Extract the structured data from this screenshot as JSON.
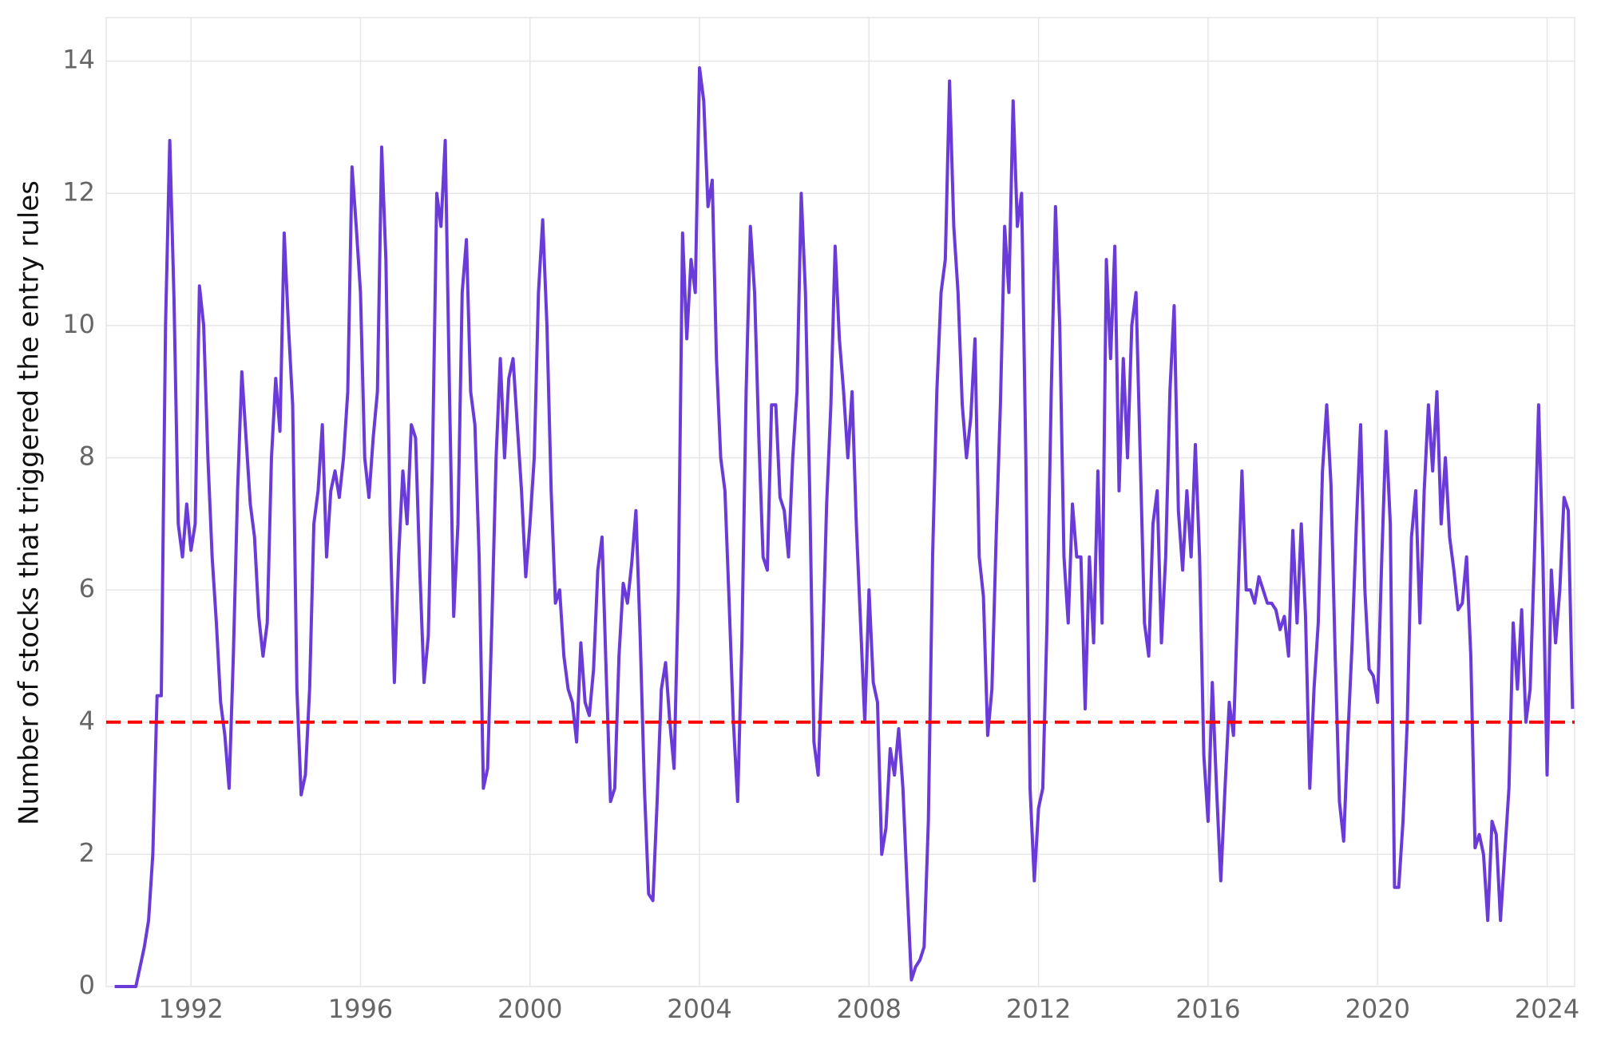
{
  "chart_data": {
    "type": "line",
    "y_label": "Number of stocks that triggered the entry rules",
    "x": [
      1990.2,
      1990.3,
      1990.4,
      1990.5,
      1990.6,
      1990.7,
      1990.8,
      1990.9,
      1991,
      1991.1,
      1991.2,
      1991.3,
      1991.4,
      1991.5,
      1991.6,
      1991.7,
      1991.8,
      1991.9,
      1992,
      1992.1,
      1992.2,
      1992.3,
      1992.4,
      1992.5,
      1992.6,
      1992.7,
      1992.8,
      1992.9,
      1993,
      1993.1,
      1993.2,
      1993.3,
      1993.4,
      1993.5,
      1993.6,
      1993.7,
      1993.8,
      1993.9,
      1994,
      1994.1,
      1994.2,
      1994.3,
      1994.4,
      1994.5,
      1994.6,
      1994.7,
      1994.8,
      1994.9,
      1995,
      1995.1,
      1995.2,
      1995.3,
      1995.4,
      1995.5,
      1995.6,
      1995.7,
      1995.8,
      1995.9,
      1996,
      1996.1,
      1996.2,
      1996.3,
      1996.4,
      1996.5,
      1996.6,
      1996.7,
      1996.8,
      1996.9,
      1997,
      1997.1,
      1997.2,
      1997.3,
      1997.4,
      1997.5,
      1997.6,
      1997.7,
      1997.8,
      1997.9,
      1998,
      1998.1,
      1998.2,
      1998.3,
      1998.4,
      1998.5,
      1998.6,
      1998.7,
      1998.8,
      1998.9,
      1999,
      1999.1,
      1999.2,
      1999.3,
      1999.4,
      1999.5,
      1999.6,
      1999.7,
      1999.8,
      1999.9,
      2000,
      2000.1,
      2000.2,
      2000.3,
      2000.4,
      2000.5,
      2000.6,
      2000.7,
      2000.8,
      2000.9,
      2001,
      2001.1,
      2001.2,
      2001.3,
      2001.4,
      2001.5,
      2001.6,
      2001.7,
      2001.8,
      2001.9,
      2002,
      2002.1,
      2002.2,
      2002.3,
      2002.4,
      2002.5,
      2002.6,
      2002.7,
      2002.8,
      2002.9,
      2003,
      2003.1,
      2003.2,
      2003.3,
      2003.4,
      2003.5,
      2003.6,
      2003.7,
      2003.8,
      2003.9,
      2004,
      2004.1,
      2004.2,
      2004.3,
      2004.4,
      2004.5,
      2004.6,
      2004.7,
      2004.8,
      2004.9,
      2005,
      2005.1,
      2005.2,
      2005.3,
      2005.4,
      2005.5,
      2005.6,
      2005.7,
      2005.8,
      2005.9,
      2006,
      2006.1,
      2006.2,
      2006.3,
      2006.4,
      2006.5,
      2006.6,
      2006.7,
      2006.8,
      2006.9,
      2007,
      2007.1,
      2007.2,
      2007.3,
      2007.4,
      2007.5,
      2007.6,
      2007.7,
      2007.8,
      2007.9,
      2008,
      2008.1,
      2008.2,
      2008.3,
      2008.4,
      2008.5,
      2008.6,
      2008.7,
      2008.8,
      2008.9,
      2009,
      2009.1,
      2009.2,
      2009.3,
      2009.4,
      2009.5,
      2009.6,
      2009.7,
      2009.8,
      2009.9,
      2010,
      2010.1,
      2010.2,
      2010.3,
      2010.4,
      2010.5,
      2010.6,
      2010.7,
      2010.8,
      2010.9,
      2011,
      2011.1,
      2011.2,
      2011.3,
      2011.4,
      2011.5,
      2011.6,
      2011.7,
      2011.8,
      2011.9,
      2012,
      2012.1,
      2012.2,
      2012.3,
      2012.4,
      2012.5,
      2012.6,
      2012.7,
      2012.8,
      2012.9,
      2013,
      2013.1,
      2013.2,
      2013.3,
      2013.4,
      2013.5,
      2013.6,
      2013.7,
      2013.8,
      2013.9,
      2014,
      2014.1,
      2014.2,
      2014.3,
      2014.4,
      2014.5,
      2014.6,
      2014.7,
      2014.8,
      2014.9,
      2015,
      2015.1,
      2015.2,
      2015.3,
      2015.4,
      2015.5,
      2015.6,
      2015.7,
      2015.8,
      2015.9,
      2016,
      2016.1,
      2016.2,
      2016.3,
      2016.4,
      2016.5,
      2016.6,
      2016.7,
      2016.8,
      2016.9,
      2017,
      2017.1,
      2017.2,
      2017.3,
      2017.4,
      2017.5,
      2017.6,
      2017.7,
      2017.8,
      2017.9,
      2018,
      2018.1,
      2018.2,
      2018.3,
      2018.4,
      2018.5,
      2018.6,
      2018.7,
      2018.8,
      2018.9,
      2019,
      2019.1,
      2019.2,
      2019.3,
      2019.4,
      2019.5,
      2019.6,
      2019.7,
      2019.8,
      2019.9,
      2020,
      2020.1,
      2020.2,
      2020.3,
      2020.4,
      2020.5,
      2020.6,
      2020.7,
      2020.8,
      2020.9,
      2021,
      2021.1,
      2021.2,
      2021.3,
      2021.4,
      2021.5,
      2021.6,
      2021.7,
      2021.8,
      2021.9,
      2022,
      2022.1,
      2022.2,
      2022.3,
      2022.4,
      2022.5,
      2022.6,
      2022.7,
      2022.8,
      2022.9,
      2023,
      2023.1,
      2023.2,
      2023.3,
      2023.4,
      2023.5,
      2023.6,
      2023.7,
      2023.8,
      2023.9,
      2024,
      2024.1,
      2024.2,
      2024.3,
      2024.4,
      2024.5,
      2024.6
    ],
    "values": [
      0,
      0,
      0,
      0,
      0,
      0,
      0.3,
      0.6,
      1,
      2,
      4.4,
      4.4,
      10,
      12.8,
      10.4,
      7,
      6.5,
      7.3,
      6.6,
      7,
      10.6,
      10,
      8,
      6.5,
      5.5,
      4.3,
      3.8,
      3,
      5,
      7.5,
      9.3,
      8.3,
      7.3,
      6.8,
      5.6,
      5,
      5.5,
      8,
      9.2,
      8.4,
      11.4,
      10,
      8.8,
      4.5,
      2.9,
      3.2,
      4.5,
      7,
      7.5,
      8.5,
      6.5,
      7.5,
      7.8,
      7.4,
      8,
      9,
      12.4,
      11.5,
      10.5,
      8,
      7.4,
      8.3,
      9,
      12.7,
      11,
      7,
      4.6,
      6.5,
      7.8,
      7,
      8.5,
      8.3,
      6.3,
      4.6,
      5.3,
      8,
      12,
      11.5,
      12.8,
      9,
      5.6,
      7,
      10.5,
      11.3,
      9,
      8.5,
      6.5,
      3,
      3.3,
      5.5,
      8,
      9.5,
      8,
      9.2,
      9.5,
      8.5,
      7.5,
      6.2,
      7,
      8,
      10.5,
      11.6,
      10,
      7.5,
      5.8,
      6,
      5,
      4.5,
      4.3,
      3.7,
      5.2,
      4.3,
      4.1,
      4.8,
      6.3,
      6.8,
      4.7,
      2.8,
      3,
      5,
      6.1,
      5.8,
      6.4,
      7.2,
      5.3,
      3,
      1.4,
      1.3,
      2.8,
      4.5,
      4.9,
      4,
      3.3,
      6,
      11.4,
      9.8,
      11,
      10.5,
      13.9,
      13.4,
      11.8,
      12.2,
      9.5,
      8,
      7.5,
      5.8,
      4,
      2.8,
      5.2,
      9,
      11.5,
      10.5,
      8.3,
      6.5,
      6.3,
      8.8,
      8.8,
      7.4,
      7.2,
      6.5,
      8,
      9,
      12,
      10.5,
      7.5,
      3.7,
      3.2,
      5,
      7.3,
      8.8,
      11.2,
      9.8,
      9,
      8,
      9,
      7,
      5.5,
      4,
      6,
      4.6,
      4.3,
      2,
      2.4,
      3.6,
      3.2,
      3.9,
      3,
      1.5,
      0.1,
      0.3,
      0.4,
      0.6,
      2.5,
      6.5,
      9,
      10.5,
      11,
      13.7,
      11.5,
      10.5,
      8.8,
      8,
      8.6,
      9.8,
      6.5,
      5.9,
      3.8,
      4.5,
      6.8,
      8.8,
      11.5,
      10.5,
      13.4,
      11.5,
      12,
      8,
      3,
      1.6,
      2.7,
      3,
      5.5,
      9,
      11.8,
      10,
      6.5,
      5.5,
      7.3,
      6.5,
      6.5,
      4.2,
      6.5,
      5.2,
      7.8,
      5.5,
      11,
      9.5,
      11.2,
      7.5,
      9.5,
      8,
      10,
      10.5,
      8,
      5.5,
      5,
      7,
      7.5,
      5.2,
      6.5,
      9,
      10.3,
      7.2,
      6.3,
      7.5,
      6.5,
      8.2,
      6.5,
      3.5,
      2.5,
      4.6,
      3,
      1.6,
      3,
      4.3,
      3.8,
      5.8,
      7.8,
      6,
      6,
      5.8,
      6.2,
      6,
      5.8,
      5.8,
      5.7,
      5.4,
      5.6,
      5,
      6.9,
      5.5,
      7,
      5.6,
      3,
      4.5,
      5.5,
      7.8,
      8.8,
      7.6,
      5,
      2.8,
      2.2,
      3.8,
      5.2,
      7,
      8.5,
      6,
      4.8,
      4.7,
      4.3,
      6.5,
      8.4,
      7,
      1.5,
      1.5,
      2.5,
      4,
      6.8,
      7.5,
      5.5,
      7.5,
      8.8,
      7.8,
      9,
      7,
      8,
      6.8,
      6.3,
      5.7,
      5.8,
      6.5,
      5,
      2.1,
      2.3,
      2,
      1,
      2.5,
      2.3,
      1,
      2,
      3,
      5.5,
      4.5,
      5.7,
      4,
      4.5,
      6.5,
      8.8,
      6.5,
      3.2,
      6.3,
      5.2,
      6,
      7.4,
      7.2,
      4.2
    ],
    "color": "#6a3bd8",
    "hline": 4,
    "hline_color": "#ff0000",
    "xlim": [
      1990,
      2024.65
    ],
    "xticks": [
      1992,
      1996,
      2000,
      2004,
      2008,
      2012,
      2016,
      2020,
      2024
    ],
    "ylim": [
      0,
      14.66
    ],
    "yticks": [
      0,
      2,
      4,
      6,
      8,
      10,
      12,
      14
    ],
    "grid": true
  }
}
